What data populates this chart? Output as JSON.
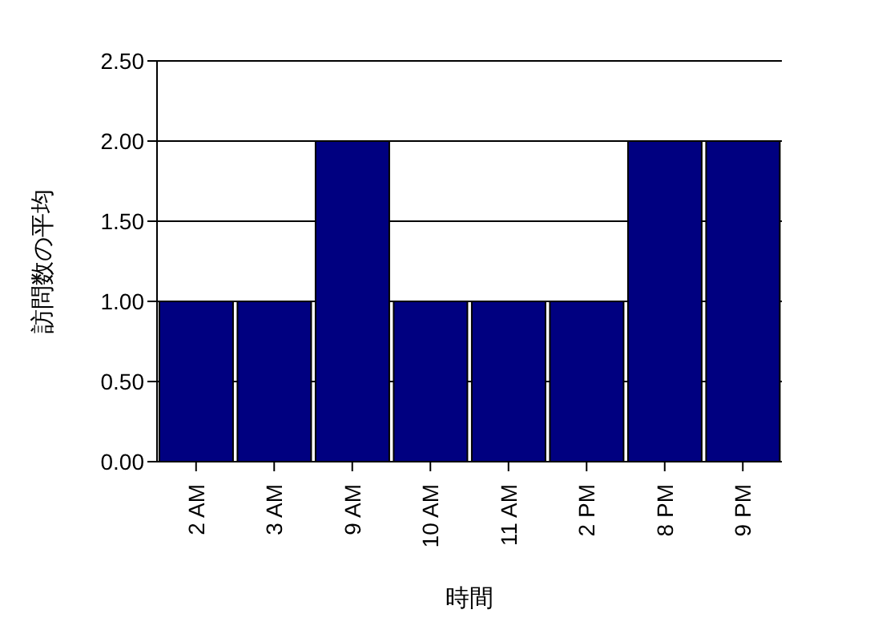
{
  "chart_data": {
    "type": "bar",
    "xlabel": "時間",
    "ylabel": "訪問数の平均",
    "categories": [
      "2 AM",
      "3 AM",
      "9 AM",
      "10 AM",
      "11 AM",
      "2 PM",
      "8 PM",
      "9 PM"
    ],
    "values": [
      1,
      1,
      2,
      1,
      1,
      1,
      2,
      2
    ],
    "color": "#000080",
    "ylim": [
      0,
      2.5
    ],
    "yticks": [
      {
        "value": 0,
        "label": "0.00"
      },
      {
        "value": 0.5,
        "label": "0.50"
      },
      {
        "value": 1,
        "label": "1.00"
      },
      {
        "value": 1.5,
        "label": "1.50"
      },
      {
        "value": 2,
        "label": "2.00"
      },
      {
        "value": 2.5,
        "label": "2.50"
      }
    ],
    "grid": "y"
  }
}
